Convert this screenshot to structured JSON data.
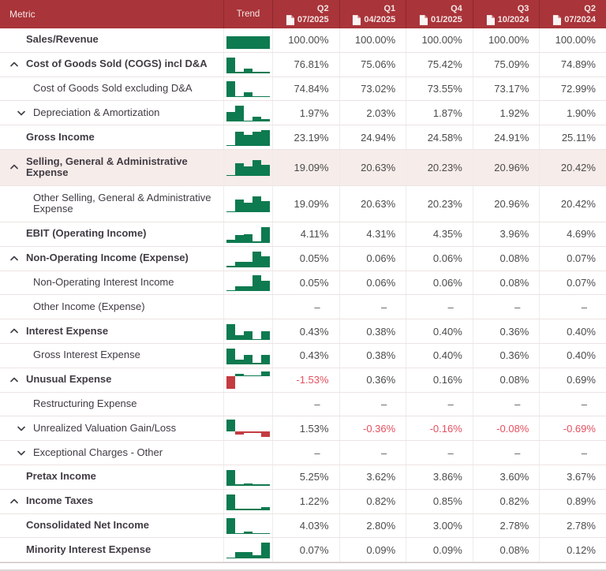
{
  "colors": {
    "header_bg": "#A93439",
    "spark_green": "#0E7A50",
    "spark_red": "#C43B40",
    "negative_text": "#E4505F",
    "highlight_row_bg": "#F6ECE9"
  },
  "table": {
    "header": {
      "metric_label": "Metric",
      "trend_label": "Trend",
      "periods": [
        {
          "quarter": "Q2",
          "date": "07/2025"
        },
        {
          "quarter": "Q1",
          "date": "04/2025"
        },
        {
          "quarter": "Q4",
          "date": "01/2025"
        },
        {
          "quarter": "Q3",
          "date": "10/2024"
        },
        {
          "quarter": "Q2",
          "date": "07/2024"
        }
      ]
    },
    "rows": [
      {
        "label": "Sales/Revenue",
        "level": 1,
        "chevron": null,
        "bold": true,
        "highlighted": false,
        "tall": false,
        "display": [
          "100.00%",
          "100.00%",
          "100.00%",
          "100.00%",
          "100.00%"
        ],
        "numeric": [
          100.0,
          100.0,
          100.0,
          100.0,
          100.0
        ]
      },
      {
        "label": "Cost of Goods Sold (COGS) incl D&A",
        "level": 1,
        "chevron": "up",
        "bold": true,
        "highlighted": false,
        "tall": false,
        "display": [
          "76.81%",
          "75.06%",
          "75.42%",
          "75.09%",
          "74.89%"
        ],
        "numeric": [
          76.81,
          75.06,
          75.42,
          75.09,
          74.89
        ]
      },
      {
        "label": "Cost of Goods Sold excluding D&A",
        "level": 2,
        "chevron": null,
        "bold": false,
        "highlighted": false,
        "tall": false,
        "display": [
          "74.84%",
          "73.02%",
          "73.55%",
          "73.17%",
          "72.99%"
        ],
        "numeric": [
          74.84,
          73.02,
          73.55,
          73.17,
          72.99
        ]
      },
      {
        "label": "Depreciation & Amortization",
        "level": 2,
        "chevron": "down",
        "bold": false,
        "highlighted": false,
        "tall": false,
        "display": [
          "1.97%",
          "2.03%",
          "1.87%",
          "1.92%",
          "1.90%"
        ],
        "numeric": [
          1.97,
          2.03,
          1.87,
          1.92,
          1.9
        ]
      },
      {
        "label": "Gross Income",
        "level": 1,
        "chevron": null,
        "bold": true,
        "highlighted": false,
        "tall": false,
        "display": [
          "23.19%",
          "24.94%",
          "24.58%",
          "24.91%",
          "25.11%"
        ],
        "numeric": [
          23.19,
          24.94,
          24.58,
          24.91,
          25.11
        ]
      },
      {
        "label": "Selling, General & Administrative Expense",
        "level": 1,
        "chevron": "up",
        "bold": true,
        "highlighted": true,
        "tall": true,
        "display": [
          "19.09%",
          "20.63%",
          "20.23%",
          "20.96%",
          "20.42%"
        ],
        "numeric": [
          19.09,
          20.63,
          20.23,
          20.96,
          20.42
        ]
      },
      {
        "label": "Other Selling, General & Administrative Expense",
        "level": 2,
        "chevron": null,
        "bold": false,
        "highlighted": false,
        "tall": true,
        "display": [
          "19.09%",
          "20.63%",
          "20.23%",
          "20.96%",
          "20.42%"
        ],
        "numeric": [
          19.09,
          20.63,
          20.23,
          20.96,
          20.42
        ]
      },
      {
        "label": "EBIT (Operating Income)",
        "level": 1,
        "chevron": null,
        "bold": true,
        "highlighted": false,
        "tall": false,
        "display": [
          "4.11%",
          "4.31%",
          "4.35%",
          "3.96%",
          "4.69%"
        ],
        "numeric": [
          4.11,
          4.31,
          4.35,
          3.96,
          4.69
        ]
      },
      {
        "label": "Non-Operating Income (Expense)",
        "level": 1,
        "chevron": "up",
        "bold": true,
        "highlighted": false,
        "tall": false,
        "display": [
          "0.05%",
          "0.06%",
          "0.06%",
          "0.08%",
          "0.07%"
        ],
        "numeric": [
          0.05,
          0.06,
          0.06,
          0.08,
          0.07
        ]
      },
      {
        "label": "Non-Operating Interest Income",
        "level": 2,
        "chevron": null,
        "bold": false,
        "highlighted": false,
        "tall": false,
        "display": [
          "0.05%",
          "0.06%",
          "0.06%",
          "0.08%",
          "0.07%"
        ],
        "numeric": [
          0.05,
          0.06,
          0.06,
          0.08,
          0.07
        ]
      },
      {
        "label": "Other Income (Expense)",
        "level": 2,
        "chevron": null,
        "bold": false,
        "highlighted": false,
        "tall": false,
        "display": [
          "–",
          "–",
          "–",
          "–",
          "–"
        ],
        "numeric": [
          null,
          null,
          null,
          null,
          null
        ]
      },
      {
        "label": "Interest Expense",
        "level": 1,
        "chevron": "up",
        "bold": true,
        "highlighted": false,
        "tall": false,
        "display": [
          "0.43%",
          "0.38%",
          "0.40%",
          "0.36%",
          "0.40%"
        ],
        "numeric": [
          0.43,
          0.38,
          0.4,
          0.36,
          0.4
        ]
      },
      {
        "label": "Gross Interest Expense",
        "level": 2,
        "chevron": null,
        "bold": false,
        "highlighted": false,
        "tall": false,
        "display": [
          "0.43%",
          "0.38%",
          "0.40%",
          "0.36%",
          "0.40%"
        ],
        "numeric": [
          0.43,
          0.38,
          0.4,
          0.36,
          0.4
        ]
      },
      {
        "label": "Unusual Expense",
        "level": 1,
        "chevron": "up",
        "bold": true,
        "highlighted": false,
        "tall": false,
        "display": [
          "-1.53%",
          "0.36%",
          "0.16%",
          "0.08%",
          "0.69%"
        ],
        "numeric": [
          -1.53,
          0.36,
          0.16,
          0.08,
          0.69
        ]
      },
      {
        "label": "Restructuring Expense",
        "level": 2,
        "chevron": null,
        "bold": false,
        "highlighted": false,
        "tall": false,
        "display": [
          "–",
          "–",
          "–",
          "–",
          "–"
        ],
        "numeric": [
          null,
          null,
          null,
          null,
          null
        ]
      },
      {
        "label": "Unrealized Valuation Gain/Loss",
        "level": 2,
        "chevron": "down",
        "bold": false,
        "highlighted": false,
        "tall": false,
        "display": [
          "1.53%",
          "-0.36%",
          "-0.16%",
          "-0.08%",
          "-0.69%"
        ],
        "numeric": [
          1.53,
          -0.36,
          -0.16,
          -0.08,
          -0.69
        ]
      },
      {
        "label": "Exceptional Charges - Other",
        "level": 2,
        "chevron": "down",
        "bold": false,
        "highlighted": false,
        "tall": false,
        "display": [
          "–",
          "–",
          "–",
          "–",
          "–"
        ],
        "numeric": [
          null,
          null,
          null,
          null,
          null
        ]
      },
      {
        "label": "Pretax Income",
        "level": 1,
        "chevron": null,
        "bold": true,
        "highlighted": false,
        "tall": false,
        "display": [
          "5.25%",
          "3.62%",
          "3.86%",
          "3.60%",
          "3.67%"
        ],
        "numeric": [
          5.25,
          3.62,
          3.86,
          3.6,
          3.67
        ]
      },
      {
        "label": "Income Taxes",
        "level": 1,
        "chevron": "up",
        "bold": true,
        "highlighted": false,
        "tall": false,
        "display": [
          "1.22%",
          "0.82%",
          "0.85%",
          "0.82%",
          "0.89%"
        ],
        "numeric": [
          1.22,
          0.82,
          0.85,
          0.82,
          0.89
        ]
      },
      {
        "label": "Consolidated Net Income",
        "level": 1,
        "chevron": null,
        "bold": true,
        "highlighted": false,
        "tall": false,
        "display": [
          "4.03%",
          "2.80%",
          "3.00%",
          "2.78%",
          "2.78%"
        ],
        "numeric": [
          4.03,
          2.8,
          3.0,
          2.78,
          2.78
        ]
      },
      {
        "label": "Minority Interest Expense",
        "level": 1,
        "chevron": null,
        "bold": true,
        "highlighted": false,
        "tall": false,
        "display": [
          "0.07%",
          "0.09%",
          "0.09%",
          "0.08%",
          "0.12%"
        ],
        "numeric": [
          0.07,
          0.09,
          0.09,
          0.08,
          0.12
        ]
      }
    ]
  }
}
